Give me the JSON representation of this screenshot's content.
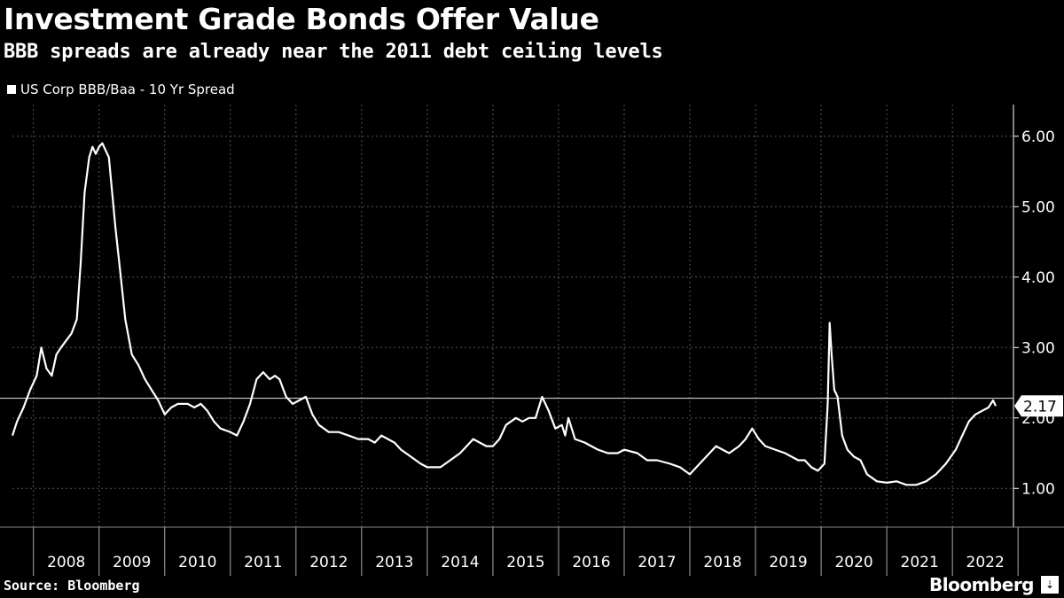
{
  "header": {
    "title": "Investment Grade Bonds Offer Value",
    "subtitle": "BBB spreads are already near the 2011 debt ceiling levels"
  },
  "footer": {
    "source": "Source: Bloomberg",
    "brand": "Bloomberg",
    "brand_icon": "⇣"
  },
  "colors": {
    "background": "#000000",
    "line": "#ffffff",
    "grid": "#555555",
    "reference": "#bbbbbb"
  },
  "chart_data": {
    "type": "line",
    "title": "Investment Grade Bonds Offer Value",
    "subtitle": "BBB spreads are already near the 2011 debt ceiling levels",
    "xlabel": "",
    "ylabel": "",
    "xlim": [
      2007.68,
      2022.93
    ],
    "ylim": [
      0.45,
      6.45
    ],
    "y_ticks": [
      1,
      2,
      3,
      4,
      5,
      6
    ],
    "y_tick_labels": [
      "1.00",
      "2.00",
      "3.00",
      "4.00",
      "5.00",
      "6.00"
    ],
    "x_tick_labels": [
      "2008",
      "2009",
      "2010",
      "2011",
      "2012",
      "2013",
      "2014",
      "2015",
      "2016",
      "2017",
      "2018",
      "2019",
      "2020",
      "2021",
      "2022"
    ],
    "grid": true,
    "reference_line": {
      "value": 2.28,
      "label": ""
    },
    "last_value_label": "2.17",
    "series": [
      {
        "name": "US Corp BBB/Baa - 10 Yr Spread",
        "x": [
          2007.68,
          2007.75,
          2007.85,
          2007.95,
          2008.05,
          2008.12,
          2008.2,
          2008.28,
          2008.35,
          2008.42,
          2008.5,
          2008.58,
          2008.66,
          2008.72,
          2008.78,
          2008.85,
          2008.9,
          2008.95,
          2009.0,
          2009.05,
          2009.1,
          2009.15,
          2009.2,
          2009.25,
          2009.32,
          2009.4,
          2009.5,
          2009.6,
          2009.7,
          2009.8,
          2009.9,
          2010.0,
          2010.1,
          2010.2,
          2010.35,
          2010.45,
          2010.55,
          2010.65,
          2010.75,
          2010.85,
          2011.0,
          2011.1,
          2011.2,
          2011.3,
          2011.4,
          2011.5,
          2011.6,
          2011.68,
          2011.75,
          2011.85,
          2011.95,
          2012.05,
          2012.15,
          2012.25,
          2012.35,
          2012.5,
          2012.65,
          2012.8,
          2012.95,
          2013.1,
          2013.2,
          2013.3,
          2013.4,
          2013.5,
          2013.6,
          2013.75,
          2013.9,
          2014.0,
          2014.1,
          2014.2,
          2014.35,
          2014.5,
          2014.6,
          2014.7,
          2014.8,
          2014.9,
          2015.0,
          2015.1,
          2015.2,
          2015.35,
          2015.45,
          2015.55,
          2015.65,
          2015.75,
          2015.85,
          2015.95,
          2016.05,
          2016.1,
          2016.15,
          2016.25,
          2016.4,
          2016.5,
          2016.6,
          2016.75,
          2016.9,
          2017.0,
          2017.2,
          2017.35,
          2017.5,
          2017.7,
          2017.85,
          2018.0,
          2018.1,
          2018.25,
          2018.4,
          2018.5,
          2018.6,
          2018.75,
          2018.85,
          2018.95,
          2019.05,
          2019.15,
          2019.3,
          2019.45,
          2019.55,
          2019.65,
          2019.75,
          2019.85,
          2019.95,
          2020.05,
          2020.1,
          2020.13,
          2020.16,
          2020.2,
          2020.25,
          2020.32,
          2020.4,
          2020.5,
          2020.6,
          2020.7,
          2020.85,
          2021.0,
          2021.15,
          2021.3,
          2021.45,
          2021.6,
          2021.75,
          2021.9,
          2022.05,
          2022.15,
          2022.25,
          2022.35,
          2022.45,
          2022.55,
          2022.62,
          2022.66
        ],
        "values": [
          1.75,
          1.95,
          2.15,
          2.4,
          2.6,
          3.0,
          2.7,
          2.6,
          2.9,
          3.0,
          3.1,
          3.2,
          3.4,
          4.2,
          5.2,
          5.7,
          5.85,
          5.75,
          5.85,
          5.9,
          5.8,
          5.7,
          5.2,
          4.7,
          4.1,
          3.4,
          2.9,
          2.75,
          2.55,
          2.4,
          2.25,
          2.05,
          2.15,
          2.2,
          2.2,
          2.15,
          2.2,
          2.1,
          1.95,
          1.85,
          1.8,
          1.75,
          1.95,
          2.2,
          2.55,
          2.65,
          2.55,
          2.6,
          2.55,
          2.3,
          2.2,
          2.25,
          2.3,
          2.05,
          1.9,
          1.8,
          1.8,
          1.75,
          1.7,
          1.7,
          1.65,
          1.75,
          1.7,
          1.65,
          1.55,
          1.45,
          1.35,
          1.3,
          1.3,
          1.3,
          1.4,
          1.5,
          1.6,
          1.7,
          1.65,
          1.6,
          1.6,
          1.7,
          1.9,
          2.0,
          1.95,
          2.0,
          2.0,
          2.3,
          2.1,
          1.85,
          1.9,
          1.75,
          2.0,
          1.7,
          1.65,
          1.6,
          1.55,
          1.5,
          1.5,
          1.55,
          1.5,
          1.4,
          1.4,
          1.35,
          1.3,
          1.2,
          1.3,
          1.45,
          1.6,
          1.55,
          1.5,
          1.6,
          1.7,
          1.85,
          1.7,
          1.6,
          1.55,
          1.5,
          1.45,
          1.4,
          1.4,
          1.3,
          1.25,
          1.35,
          2.2,
          3.35,
          2.9,
          2.4,
          2.3,
          1.75,
          1.55,
          1.45,
          1.4,
          1.2,
          1.1,
          1.08,
          1.1,
          1.05,
          1.05,
          1.1,
          1.2,
          1.35,
          1.55,
          1.75,
          1.95,
          2.05,
          2.1,
          2.15,
          2.25,
          2.17
        ]
      }
    ]
  }
}
